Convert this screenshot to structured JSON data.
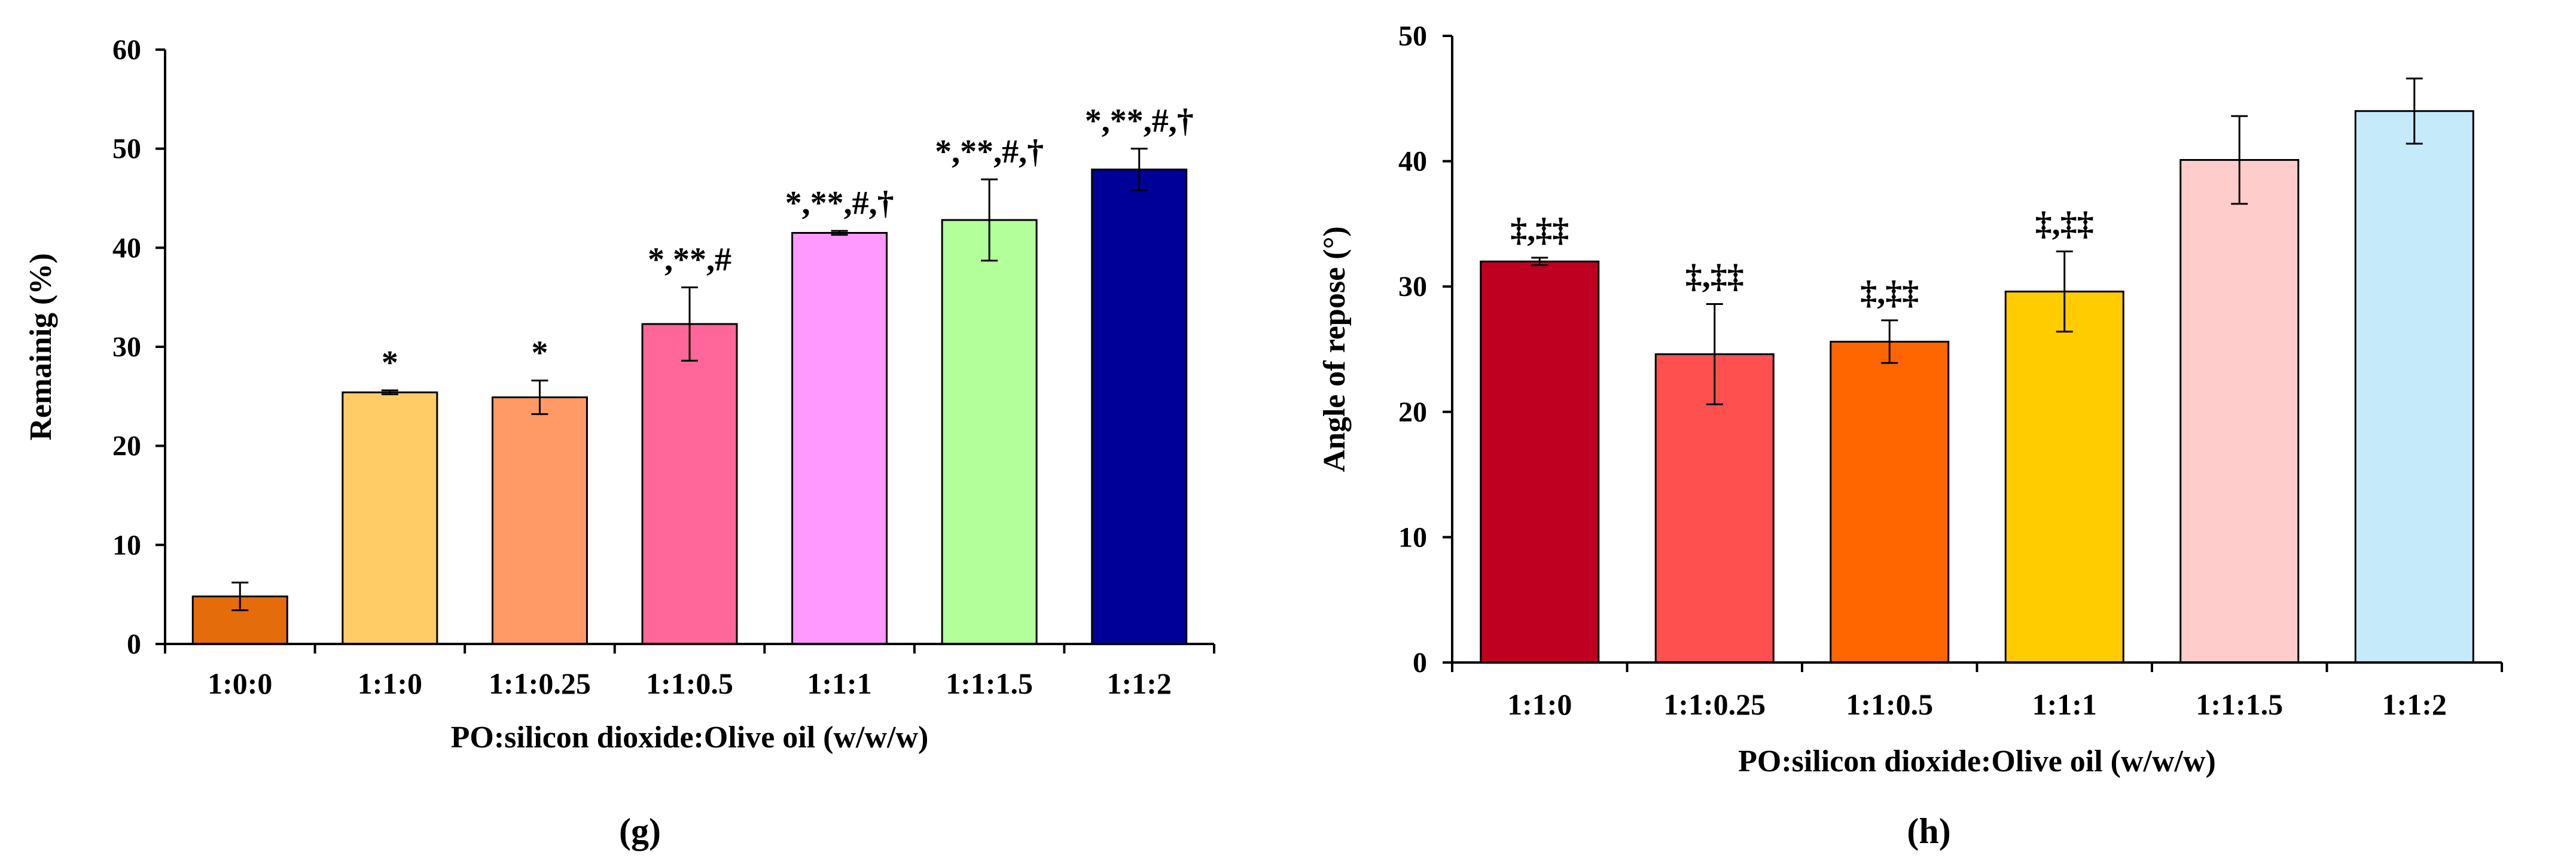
{
  "chart_data": [
    {
      "type": "bar",
      "panel": "(g)",
      "panel_letter": "g",
      "xlabel": "PO:silicon dioxide:Olive oil (w/w/w)",
      "ylabel": "Remainig (%)",
      "ylim": [
        0,
        60
      ],
      "yticks": [
        0,
        10,
        20,
        30,
        40,
        50,
        60
      ],
      "categories": [
        "1:0:0",
        "1:1:0",
        "1:1:0.25",
        "1:1:0.5",
        "1:1:1",
        "1:1:1.5",
        "1:1:2"
      ],
      "values": [
        4.8,
        25.4,
        24.9,
        32.3,
        41.5,
        42.8,
        47.9
      ],
      "errors": [
        1.4,
        0.2,
        1.7,
        3.7,
        0.2,
        4.1,
        2.1
      ],
      "colors": [
        "#E46C0A",
        "#FFCC66",
        "#FF9966",
        "#FF6699",
        "#FF99FF",
        "#B3FF99",
        "#000099"
      ],
      "annotations": [
        "",
        "*",
        "*",
        "*,**,#",
        "*,**,#,†",
        "*,**,#,†",
        "*,**,#,†"
      ]
    },
    {
      "type": "bar",
      "panel": "(h)",
      "panel_letter": "h",
      "xlabel": "PO:silicon dioxide:Olive oil (w/w/w)",
      "ylabel": "Angle of repose (°)",
      "ylim": [
        0,
        50
      ],
      "yticks": [
        0,
        10,
        20,
        30,
        40,
        50
      ],
      "categories": [
        "1:1:0",
        "1:1:0.25",
        "1:1:0.5",
        "1:1:1",
        "1:1:1.5",
        "1:1:2"
      ],
      "values": [
        32.0,
        24.6,
        25.6,
        29.6,
        40.1,
        44.0
      ],
      "errors": [
        0.3,
        4.0,
        1.7,
        3.2,
        3.5,
        2.6
      ],
      "colors": [
        "#C00020",
        "#FF5050",
        "#FF6600",
        "#FFCC00",
        "#FFCCCC",
        "#C5EBFA"
      ],
      "annotations": [
        "‡,‡‡",
        "‡,‡‡",
        "‡,‡‡",
        "‡,‡‡",
        "",
        ""
      ]
    }
  ]
}
